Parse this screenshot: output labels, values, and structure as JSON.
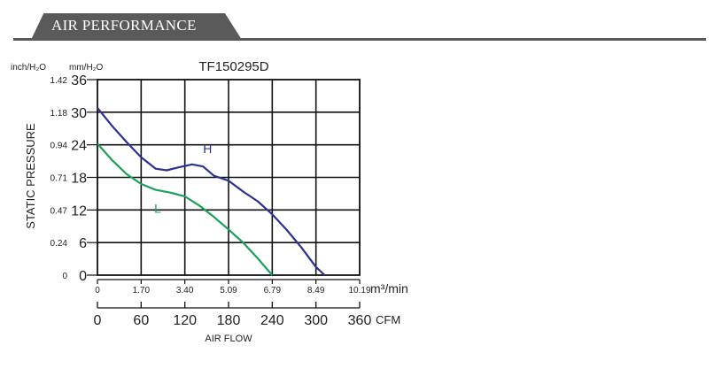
{
  "header": {
    "title": "AIR PERFORMANCE"
  },
  "chart_data": {
    "type": "line",
    "title": "TF150295D",
    "xlabel": "AIR FLOW",
    "ylabel": "STATIC PRESSURE",
    "x_unit": "CFM",
    "x_unit_secondary": "m³/min",
    "y_unit": "mm/H₂O",
    "y_unit_secondary": "inch/H₂O",
    "xlim": [
      0,
      360
    ],
    "ylim": [
      0,
      36
    ],
    "grid": true,
    "x_ticks": [
      "0",
      "60",
      "120",
      "180",
      "240",
      "300",
      "360"
    ],
    "x_ticks_secondary": [
      "0",
      "1.70",
      "3.40",
      "5.09",
      "6.79",
      "8.49",
      "10.19"
    ],
    "y_ticks": [
      "0",
      "6",
      "12",
      "18",
      "24",
      "30",
      "36"
    ],
    "y_ticks_secondary": [
      "0",
      "0.24",
      "0.47",
      "0.71",
      "0.94",
      "1.18",
      "1.42"
    ],
    "series": [
      {
        "name": "H",
        "color": "#2b3192",
        "points": [
          [
            0,
            30.8
          ],
          [
            20,
            27.5
          ],
          [
            40,
            24.5
          ],
          [
            60,
            21.7
          ],
          [
            80,
            19.6
          ],
          [
            95,
            19.3
          ],
          [
            110,
            19.8
          ],
          [
            130,
            20.4
          ],
          [
            145,
            20.0
          ],
          [
            160,
            18.3
          ],
          [
            180,
            17.4
          ],
          [
            200,
            15.4
          ],
          [
            220,
            13.6
          ],
          [
            240,
            11.2
          ],
          [
            260,
            8.3
          ],
          [
            280,
            5.1
          ],
          [
            300,
            1.5
          ],
          [
            312,
            0
          ]
        ]
      },
      {
        "name": "L",
        "color": "#1aa05a",
        "points": [
          [
            0,
            24.2
          ],
          [
            20,
            21.2
          ],
          [
            40,
            18.6
          ],
          [
            60,
            16.8
          ],
          [
            80,
            15.7
          ],
          [
            100,
            15.2
          ],
          [
            120,
            14.5
          ],
          [
            140,
            12.8
          ],
          [
            160,
            10.7
          ],
          [
            180,
            8.4
          ],
          [
            200,
            6.0
          ],
          [
            220,
            3.1
          ],
          [
            240,
            0
          ]
        ]
      }
    ]
  }
}
